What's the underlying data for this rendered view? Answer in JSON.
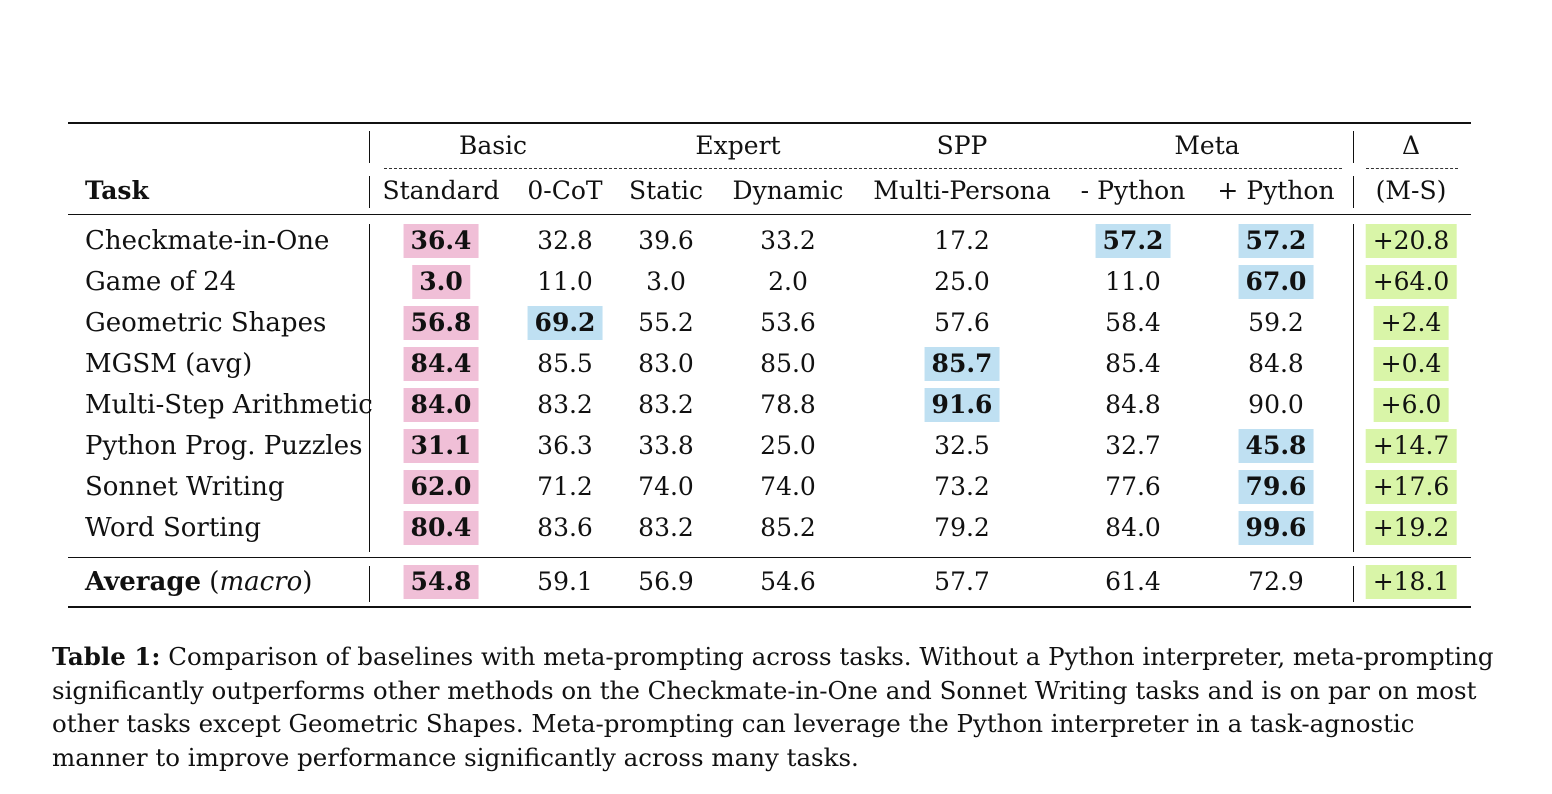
{
  "table": {
    "group_headers": {
      "basic": "Basic",
      "expert": "Expert",
      "spp": "SPP",
      "meta": "Meta",
      "delta": "Δ"
    },
    "column_headers": {
      "task": "Task",
      "standard": "Standard",
      "zero_cot": "0-CoT",
      "static": "Static",
      "dynamic": "Dynamic",
      "multi_persona": "Multi-Persona",
      "minus_python": "- Python",
      "plus_python": "+ Python",
      "delta_ms": "(M-S)"
    },
    "rows": [
      {
        "task": "Checkmate-in-One",
        "standard": "36.4",
        "zero_cot": "32.8",
        "static": "39.6",
        "dynamic": "33.2",
        "multi_persona": "17.2",
        "minus_python": "57.2",
        "plus_python": "57.2",
        "delta": "+20.8"
      },
      {
        "task": "Game of 24",
        "standard": "3.0",
        "zero_cot": "11.0",
        "static": "3.0",
        "dynamic": "2.0",
        "multi_persona": "25.0",
        "minus_python": "11.0",
        "plus_python": "67.0",
        "delta": "+64.0"
      },
      {
        "task": "Geometric Shapes",
        "standard": "56.8",
        "zero_cot": "69.2",
        "static": "55.2",
        "dynamic": "53.6",
        "multi_persona": "57.6",
        "minus_python": "58.4",
        "plus_python": "59.2",
        "delta": "+2.4"
      },
      {
        "task": "MGSM (avg)",
        "standard": "84.4",
        "zero_cot": "85.5",
        "static": "83.0",
        "dynamic": "85.0",
        "multi_persona": "85.7",
        "minus_python": "85.4",
        "plus_python": "84.8",
        "delta": "+0.4"
      },
      {
        "task": "Multi-Step Arithmetic",
        "standard": "84.0",
        "zero_cot": "83.2",
        "static": "83.2",
        "dynamic": "78.8",
        "multi_persona": "91.6",
        "minus_python": "84.8",
        "plus_python": "90.0",
        "delta": "+6.0"
      },
      {
        "task": "Python Prog. Puzzles",
        "standard": "31.1",
        "zero_cot": "36.3",
        "static": "33.8",
        "dynamic": "25.0",
        "multi_persona": "32.5",
        "minus_python": "32.7",
        "plus_python": "45.8",
        "delta": "+14.7"
      },
      {
        "task": "Sonnet Writing",
        "standard": "62.0",
        "zero_cot": "71.2",
        "static": "74.0",
        "dynamic": "74.0",
        "multi_persona": "73.2",
        "minus_python": "77.6",
        "plus_python": "79.6",
        "delta": "+17.6"
      },
      {
        "task": "Word Sorting",
        "standard": "80.4",
        "zero_cot": "83.6",
        "static": "83.2",
        "dynamic": "85.2",
        "multi_persona": "79.2",
        "minus_python": "84.0",
        "plus_python": "99.6",
        "delta": "+19.2"
      }
    ],
    "average": {
      "label_bold": "Average",
      "label_italic": "macro",
      "standard": "54.8",
      "zero_cot": "59.1",
      "static": "56.9",
      "dynamic": "54.6",
      "multi_persona": "57.7",
      "minus_python": "61.4",
      "plus_python": "72.9",
      "delta": "+18.1"
    },
    "colors": {
      "standard_highlight": "#f0bfd7",
      "best_highlight": "#bfe0f2",
      "delta_highlight": "#d9f5a8"
    }
  },
  "caption": {
    "label": "Table 1:",
    "text": "Comparison of baselines with meta-prompting across tasks. Without a Python interpreter, meta-prompting significantly outperforms other methods on the Checkmate-in-One and Sonnet Writing tasks and is on par on most other tasks except Geometric Shapes. Meta-prompting can leverage the Python interpreter in a task-agnostic manner to improve performance significantly across many tasks."
  }
}
